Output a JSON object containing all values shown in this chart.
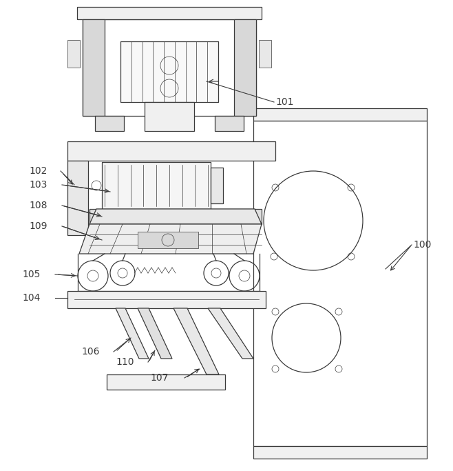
{
  "fig_width": 6.58,
  "fig_height": 6.83,
  "dpi": 100,
  "bg_color": "#ffffff",
  "lc": "#3a3a3a",
  "lw": 0.9,
  "tlw": 0.5
}
